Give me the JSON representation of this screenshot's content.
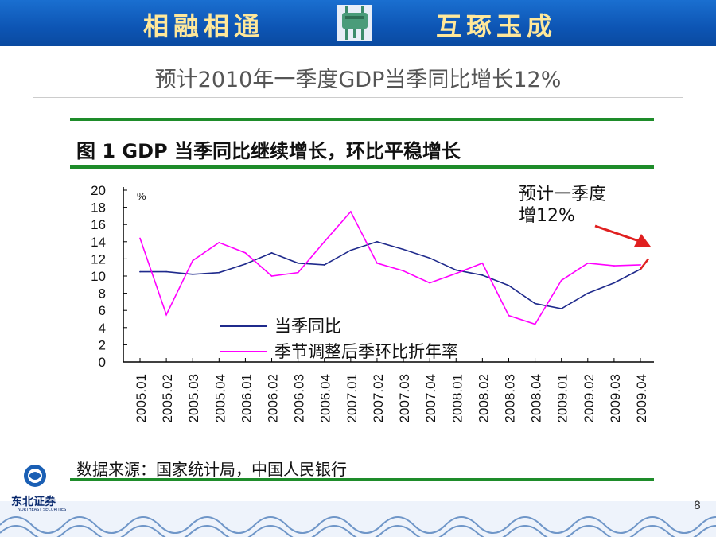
{
  "banner": {
    "left_text": "相融相通",
    "right_text": "互琢玉成"
  },
  "slide": {
    "title": "预计2010年一季度GDP当季同比增长12%",
    "page_number": "8"
  },
  "logo": {
    "name": "东北证券",
    "subtitle": "NORTHEAST SECURITIES"
  },
  "source": "数据来源：国家统计局，中国人民银行",
  "colors": {
    "banner": "#0d55b4",
    "green_rule": "#1e8c2a",
    "series1": "#1f2a8c",
    "series2": "#ff00ff",
    "arrow": "#e02020"
  },
  "chart_data": {
    "type": "line",
    "title": "图 1  GDP 当季同比继续增长，环比平稳增长",
    "ylabel": "%",
    "ylim": [
      0,
      20
    ],
    "yticks": [
      "20",
      "18",
      "16",
      "14",
      "12",
      "10",
      "8",
      "6",
      "4",
      "2",
      "0"
    ],
    "categories": [
      "2005.01",
      "2005.02",
      "2005.03",
      "2005.04",
      "2006.01",
      "2006.02",
      "2006.03",
      "2006.04",
      "2007.01",
      "2007.02",
      "2007.03",
      "2007.04",
      "2008.01",
      "2008.02",
      "2008.03",
      "2008.04",
      "2009.01",
      "2009.02",
      "2009.03",
      "2009.04"
    ],
    "series": [
      {
        "name": "当季同比",
        "color": "#1f2a8c",
        "values": [
          10.5,
          10.5,
          10.2,
          10.4,
          11.4,
          12.7,
          11.5,
          11.3,
          13.0,
          14.0,
          13.1,
          12.1,
          10.7,
          10.1,
          8.9,
          6.8,
          6.2,
          8.0,
          9.2,
          10.8
        ]
      },
      {
        "name": "季节调整后季环比折年率",
        "color": "#ff00ff",
        "values": [
          14.4,
          5.5,
          11.8,
          13.9,
          12.7,
          10.0,
          10.4,
          14.0,
          17.5,
          11.5,
          10.6,
          9.2,
          10.3,
          11.5,
          5.4,
          4.4,
          9.5,
          11.5,
          11.2,
          11.3
        ]
      }
    ],
    "forecast": {
      "label_line1": "预计一季度",
      "label_line2": "增12%",
      "from_value": 10.8,
      "to_value": 12
    },
    "legend": "bottom-center",
    "grid": false
  }
}
